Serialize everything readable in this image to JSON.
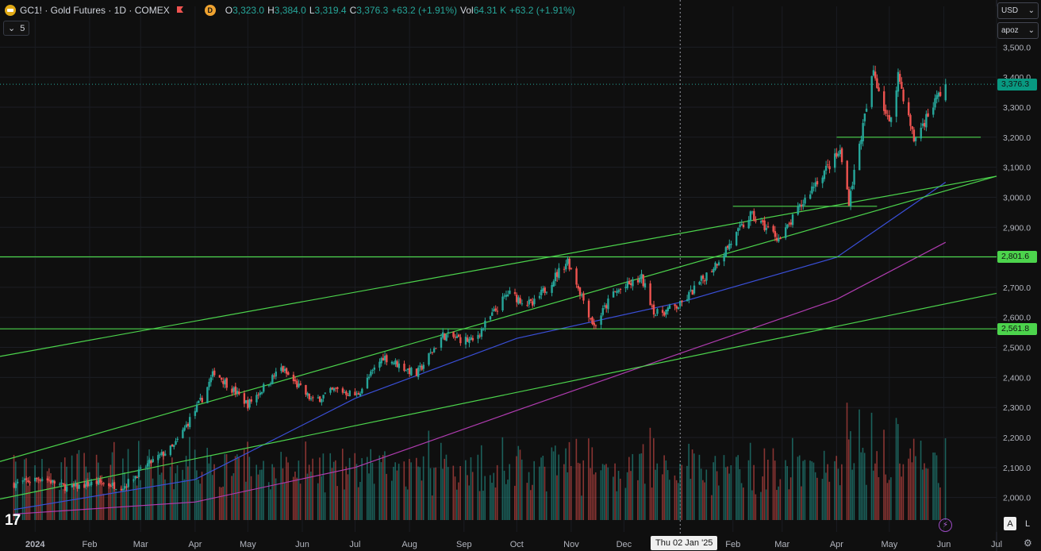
{
  "symbol": {
    "title": "GC1! · Gold Futures · 1D · COMEX",
    "badge": "D",
    "ohlc": [
      {
        "k": "O",
        "v": "3,323.0"
      },
      {
        "k": "H",
        "v": "3,384.0"
      },
      {
        "k": "L",
        "v": "3,319.4"
      },
      {
        "k": "C",
        "v": "3,376.3"
      },
      {
        "k": "",
        "v": "+63.2 (+1.91%)"
      },
      {
        "k": "Vol",
        "v": "64.31 K"
      },
      {
        "k": "",
        "v": "+63.2 (+1.91%)"
      }
    ],
    "indicator_count": "5"
  },
  "axis_controls": {
    "currency": "USD",
    "unit": "apoz",
    "auto": "A",
    "log": "L"
  },
  "crosshair_date": "Thu 02 Jan '25",
  "colors": {
    "up": "#26a69a",
    "down": "#ef5350",
    "trend": "#4cd44c",
    "ma_blue": "#3a4fd8",
    "ma_purple": "#b03cb0",
    "bg": "#0f0f0f",
    "current": "#089981"
  },
  "chart_data": {
    "type": "candlestick",
    "x_ticks": [
      "2024",
      "Feb",
      "Mar",
      "Apr",
      "May",
      "Jun",
      "Jul",
      "Aug",
      "Sep",
      "Oct",
      "Nov",
      "Dec",
      "Feb",
      "Mar",
      "Apr",
      "May",
      "Jun",
      "Jul"
    ],
    "y_ticks": [
      "3,500.0",
      "3,400.0",
      "3,300.0",
      "3,200.0",
      "3,100.0",
      "3,000.0",
      "2,900.0",
      "2,800.0",
      "2,700.0",
      "2,600.0",
      "2,500.0",
      "2,400.0",
      "2,300.0",
      "2,200.0",
      "2,100.0",
      "2,000.0"
    ],
    "ylim": [
      1925,
      3530
    ],
    "price_labels": [
      {
        "value": 3376.3,
        "text": "3,376.3",
        "color": "#089981"
      },
      {
        "value": 2801.6,
        "text": "2,801.6",
        "color": "#4cd44c"
      },
      {
        "value": 2561.8,
        "text": "2,561.8",
        "color": "#4cd44c"
      }
    ],
    "anchors": [
      {
        "date": "2023-12-20",
        "close": 2045
      },
      {
        "date": "2024-01-05",
        "close": 2065
      },
      {
        "date": "2024-01-20",
        "close": 2030
      },
      {
        "date": "2024-02-05",
        "close": 2050
      },
      {
        "date": "2024-02-20",
        "close": 2035
      },
      {
        "date": "2024-03-05",
        "close": 2110
      },
      {
        "date": "2024-03-20",
        "close": 2170
      },
      {
        "date": "2024-04-05",
        "close": 2330
      },
      {
        "date": "2024-04-12",
        "close": 2420
      },
      {
        "date": "2024-05-01",
        "close": 2310
      },
      {
        "date": "2024-05-20",
        "close": 2430
      },
      {
        "date": "2024-06-07",
        "close": 2320
      },
      {
        "date": "2024-06-20",
        "close": 2360
      },
      {
        "date": "2024-07-02",
        "close": 2340
      },
      {
        "date": "2024-07-17",
        "close": 2470
      },
      {
        "date": "2024-08-05",
        "close": 2410
      },
      {
        "date": "2024-08-20",
        "close": 2540
      },
      {
        "date": "2024-09-06",
        "close": 2520
      },
      {
        "date": "2024-09-26",
        "close": 2680
      },
      {
        "date": "2024-10-10",
        "close": 2640
      },
      {
        "date": "2024-10-30",
        "close": 2790
      },
      {
        "date": "2024-11-14",
        "close": 2570
      },
      {
        "date": "2024-11-25",
        "close": 2680
      },
      {
        "date": "2024-12-11",
        "close": 2730
      },
      {
        "date": "2024-12-19",
        "close": 2610
      },
      {
        "date": "2025-01-02",
        "close": 2640
      },
      {
        "date": "2025-01-21",
        "close": 2770
      },
      {
        "date": "2025-02-11",
        "close": 2940
      },
      {
        "date": "2025-02-28",
        "close": 2860
      },
      {
        "date": "2025-03-20",
        "close": 3050
      },
      {
        "date": "2025-04-03",
        "close": 3150
      },
      {
        "date": "2025-04-08",
        "close": 2990
      },
      {
        "date": "2025-04-22",
        "close": 3420
      },
      {
        "date": "2025-05-01",
        "close": 3240
      },
      {
        "date": "2025-05-06",
        "close": 3410
      },
      {
        "date": "2025-05-15",
        "close": 3190
      },
      {
        "date": "2025-05-28",
        "close": 3330
      },
      {
        "date": "2025-06-02",
        "close": 3376.3
      }
    ],
    "ma_blue": [
      [
        "2023-12-20",
        1960
      ],
      [
        "2024-04-01",
        2060
      ],
      [
        "2024-07-01",
        2330
      ],
      [
        "2024-10-01",
        2530
      ],
      [
        "2025-01-02",
        2650
      ],
      [
        "2025-04-01",
        2800
      ],
      [
        "2025-06-02",
        3050
      ]
    ],
    "ma_purple": [
      [
        "2023-12-20",
        1945
      ],
      [
        "2024-04-01",
        1985
      ],
      [
        "2024-07-01",
        2100
      ],
      [
        "2024-10-01",
        2290
      ],
      [
        "2025-01-02",
        2480
      ],
      [
        "2025-04-01",
        2660
      ],
      [
        "2025-06-02",
        2850
      ]
    ],
    "trendlines": [
      [
        [
          "2023-12-12",
          2120
        ],
        [
          "2025-07-01",
          3070
        ]
      ],
      [
        [
          "2023-12-12",
          2470
        ],
        [
          "2025-07-01",
          3070
        ]
      ],
      [
        [
          "2023-12-12",
          1995
        ],
        [
          "2025-07-01",
          2680
        ]
      ]
    ],
    "hlines": [
      {
        "value": 2801.6,
        "from": "2023-12-12",
        "to": "2025-07-01"
      },
      {
        "value": 2561.8,
        "from": "2023-12-12",
        "to": "2025-07-01"
      },
      {
        "value": 3200,
        "from": "2025-04-01",
        "to": "2025-06-22"
      },
      {
        "value": 2970,
        "from": "2025-02-01",
        "to": "2025-04-24"
      }
    ]
  }
}
